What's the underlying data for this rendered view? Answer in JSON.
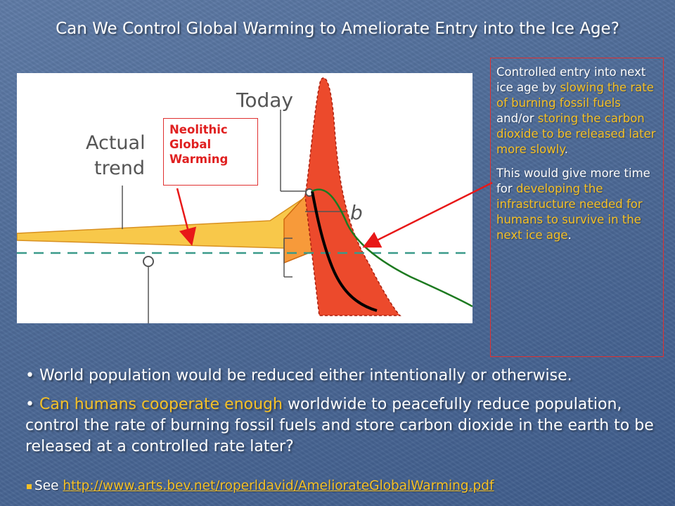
{
  "slide": {
    "title": "Can We Control Global Warming to Ameliorate Entry into the Ice Age?",
    "colors": {
      "background": "#4f6c99",
      "highlight": "#f5c026",
      "box_border": "#e03030",
      "label_red": "#e02020"
    }
  },
  "figure": {
    "labels": {
      "today": "Today",
      "actual_trend_line1": "Actual",
      "actual_trend_line2": "trend",
      "b": "b"
    },
    "neolithic_label": [
      "Neolithic",
      "Global",
      "Warming"
    ]
  },
  "side_note": {
    "p1_a": "Controlled entry into next ice age by ",
    "p1_b": "slowing the rate of burning fossil fuels",
    "p1_c": " and/or ",
    "p1_d": "storing the carbon dioxide to be released later more slowly",
    "p1_e": ".",
    "p2_a": "This would give more time for ",
    "p2_b": "developing the infrastructure needed for humans to survive in the next ice age",
    "p2_c": "."
  },
  "bullets": {
    "b1_mark": "• ",
    "b1": "World population would be reduced either intentionally or otherwise.",
    "b2_mark": "• ",
    "b2_hl": "Can humans cooperate enough",
    "b2_rest": " worldwide to peacefully reduce population, control the rate of burning fossil fuels and store carbon dioxide in the earth to be released at a controlled rate later?"
  },
  "see": {
    "label": "See ",
    "url": "http://www.arts.bev.net/roperldavid/AmeliorateGlobalWarming.pdf"
  }
}
